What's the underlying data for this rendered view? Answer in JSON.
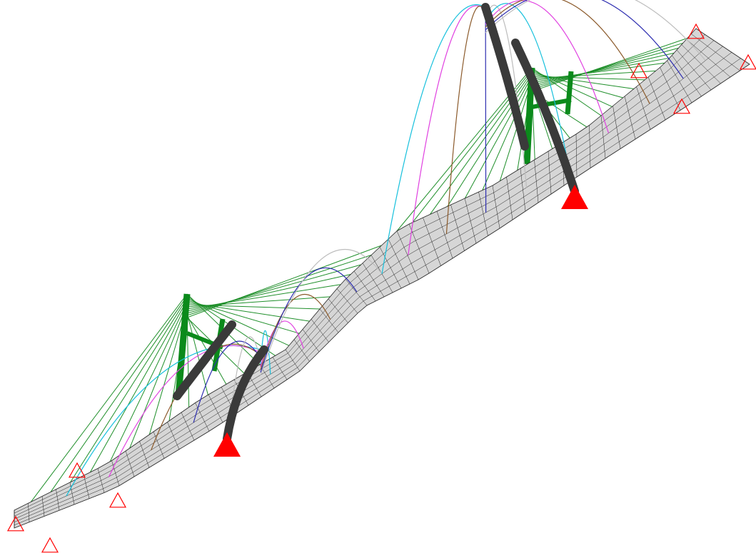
{
  "view": {
    "background": "#ffffff",
    "deformed_shape": true,
    "colors": {
      "deck_fill": "#d6d6d6",
      "deck_mesh": "#222222",
      "pylon_original": "#0b8a1b",
      "pylon_deformed": "#3a3a3a",
      "cables_original": "#1f8f2a",
      "support": "#ff0000",
      "cable_palette": [
        "#16c0dc",
        "#e040e0",
        "#8b5a2b",
        "#2d2db0",
        "#bdbdbd"
      ]
    }
  },
  "model": {
    "deck_segments": 60,
    "deck_lanes": 6,
    "cables_per_pylon": 12
  }
}
